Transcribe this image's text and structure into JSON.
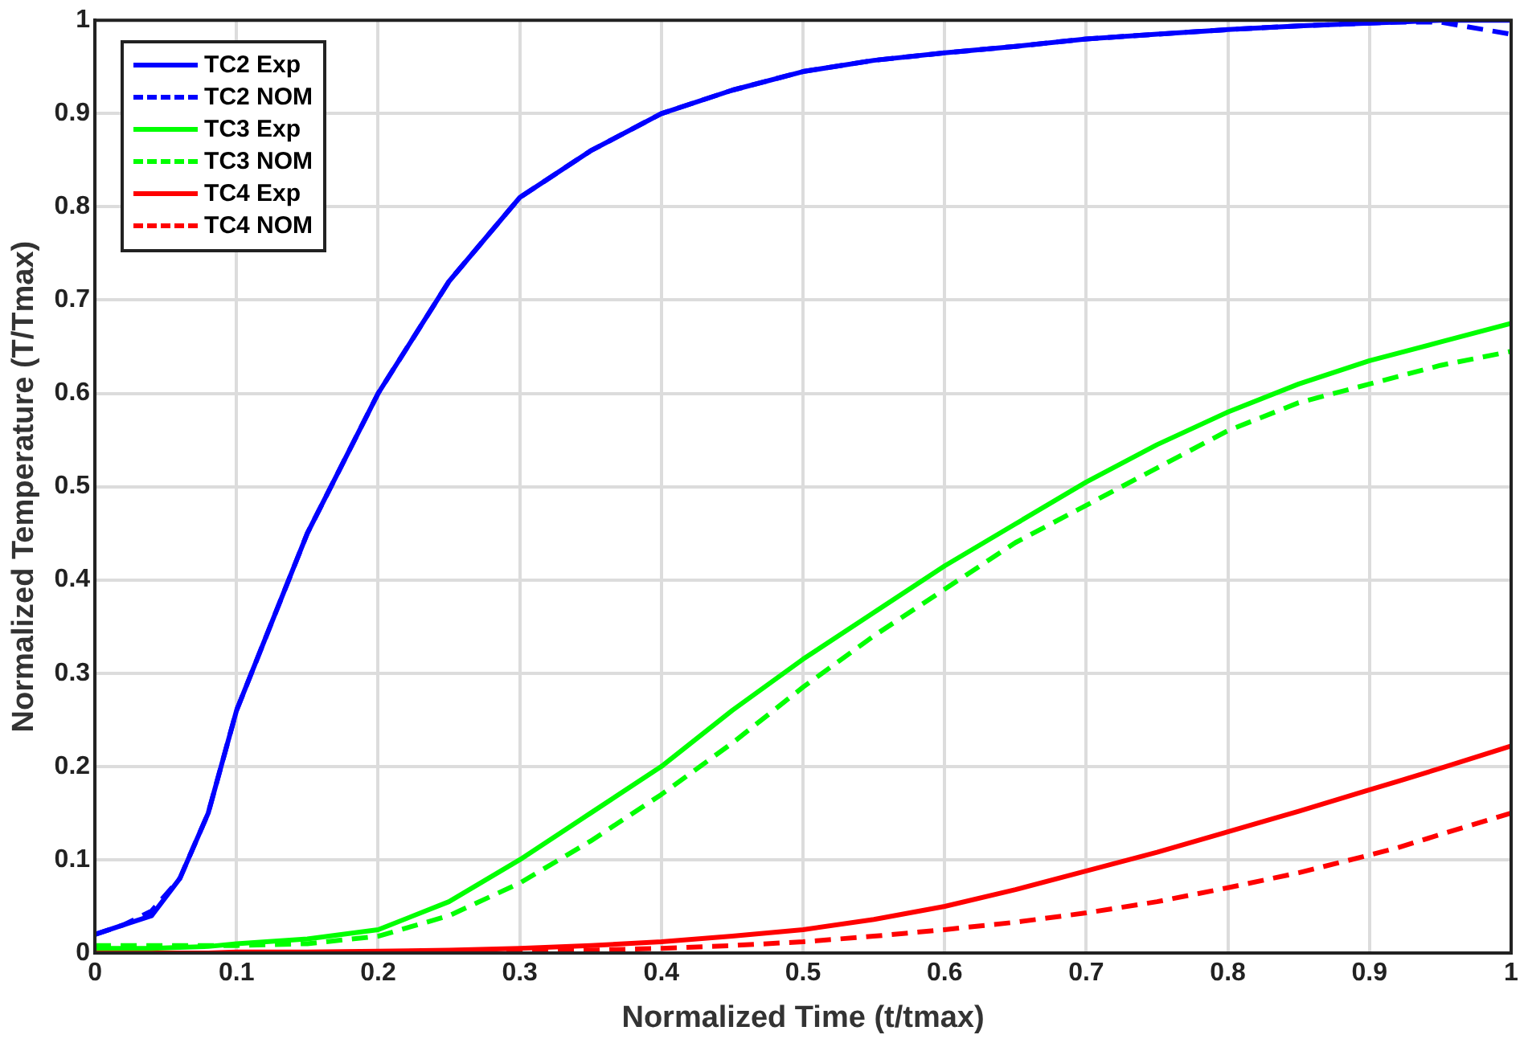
{
  "chart_data": {
    "type": "line",
    "xlabel": "Normalized Time (t/tmax)",
    "ylabel": "Normalized Temperature (T/Tmax)",
    "x": [
      0,
      0.02,
      0.04,
      0.06,
      0.08,
      0.1,
      0.15,
      0.2,
      0.25,
      0.3,
      0.35,
      0.4,
      0.45,
      0.5,
      0.55,
      0.6,
      0.65,
      0.7,
      0.75,
      0.8,
      0.85,
      0.9,
      0.92,
      0.95,
      1
    ],
    "xlim": [
      0,
      1
    ],
    "xticks": [
      0,
      0.1,
      0.2,
      0.3,
      0.4,
      0.5,
      0.6,
      0.7,
      0.8,
      0.9,
      1
    ],
    "ylim": [
      0,
      1
    ],
    "yticks": [
      0,
      0.1,
      0.2,
      0.3,
      0.4,
      0.5,
      0.6,
      0.7,
      0.8,
      0.9,
      1
    ],
    "grid": true,
    "legend": "top left",
    "marker": "none",
    "series": [
      {
        "name": "TC2 Exp",
        "color": "#0000ff",
        "line_style": "solid",
        "values": [
          0.02,
          0.03,
          0.04,
          0.08,
          0.15,
          0.26,
          0.45,
          0.6,
          0.72,
          0.81,
          0.86,
          0.9,
          0.925,
          0.945,
          0.957,
          0.965,
          0.972,
          0.98,
          0.985,
          0.99,
          0.994,
          0.997,
          0.998,
          1,
          1
        ]
      },
      {
        "name": "TC2 NOM",
        "color": "#0000ff",
        "line_style": "dashed",
        "values": [
          0.02,
          0.03,
          0.045,
          0.08,
          0.15,
          0.26,
          0.45,
          0.6,
          0.72,
          0.81,
          0.86,
          0.9,
          0.925,
          0.945,
          0.957,
          0.965,
          0.972,
          0.98,
          0.985,
          0.99,
          0.994,
          0.997,
          0.998,
          0.998,
          0.985
        ]
      },
      {
        "name": "TC3 Exp",
        "color": "#00ff00",
        "line_style": "solid",
        "values": [
          0.005,
          0.005,
          0.005,
          0.006,
          0.007,
          0.01,
          0.015,
          0.025,
          0.055,
          0.1,
          0.15,
          0.2,
          0.26,
          0.315,
          0.365,
          0.415,
          0.46,
          0.505,
          0.545,
          0.58,
          0.61,
          0.635,
          0.643,
          0.655,
          0.675
        ]
      },
      {
        "name": "TC3 NOM",
        "color": "#00ff00",
        "line_style": "dashed",
        "values": [
          0.008,
          0.008,
          0.008,
          0.008,
          0.008,
          0.008,
          0.01,
          0.018,
          0.04,
          0.075,
          0.12,
          0.17,
          0.225,
          0.285,
          0.34,
          0.39,
          0.44,
          0.48,
          0.52,
          0.56,
          0.59,
          0.61,
          0.618,
          0.63,
          0.645
        ]
      },
      {
        "name": "TC4 Exp",
        "color": "#ff0000",
        "line_style": "solid",
        "values": [
          0,
          0,
          0,
          0,
          0,
          0.001,
          0.001,
          0.002,
          0.003,
          0.005,
          0.008,
          0.012,
          0.018,
          0.025,
          0.036,
          0.05,
          0.068,
          0.088,
          0.108,
          0.13,
          0.152,
          0.175,
          0.184,
          0.198,
          0.222
        ]
      },
      {
        "name": "TC4 NOM",
        "color": "#ff0000",
        "line_style": "dashed",
        "values": [
          0,
          0,
          0,
          0,
          0,
          0,
          0,
          0,
          0.001,
          0.002,
          0.003,
          0.005,
          0.008,
          0.012,
          0.018,
          0.025,
          0.033,
          0.043,
          0.055,
          0.07,
          0.086,
          0.105,
          0.113,
          0.127,
          0.15
        ]
      }
    ]
  }
}
